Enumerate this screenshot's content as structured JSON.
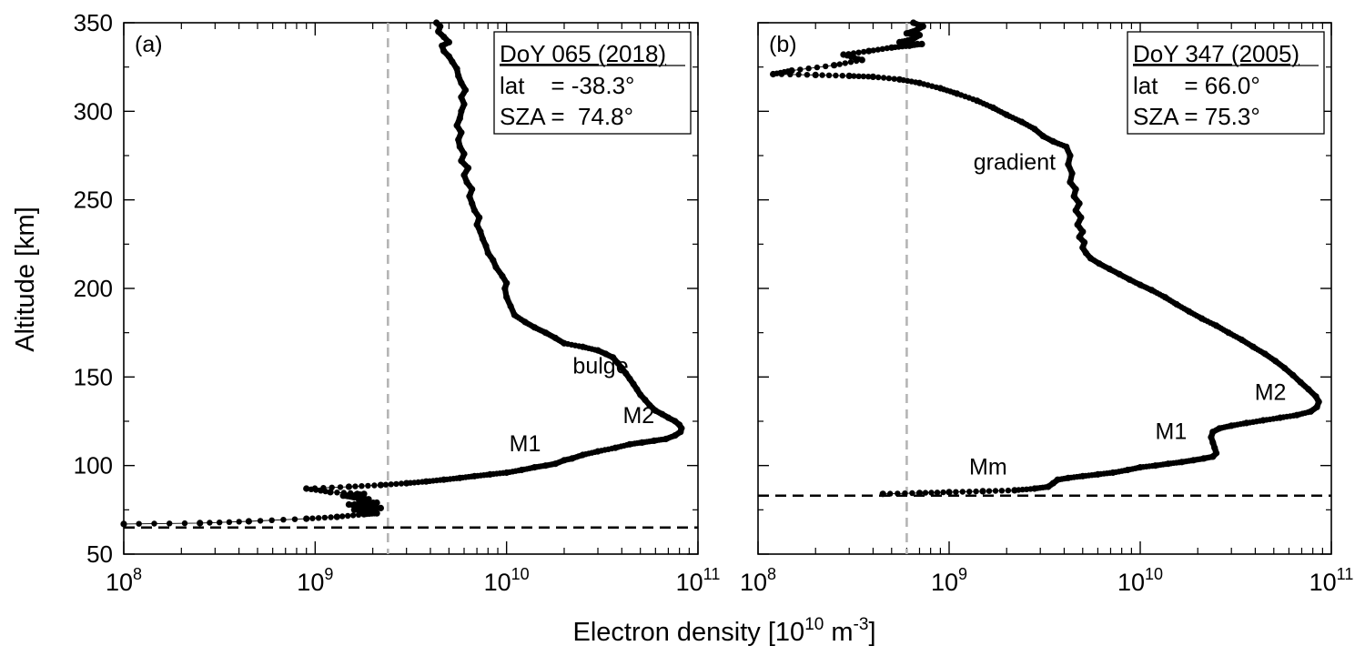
{
  "figure": {
    "xlabel_main": "Electron density [10",
    "xlabel_exp": "10",
    "xlabel_unit": " m",
    "xlabel_unit_exp": "-3",
    "xlabel_close": "]",
    "ylabel": "Altitude [km]"
  },
  "chart_data": [
    {
      "type": "scatter",
      "panel_label": "(a)",
      "xscale": "log",
      "xlim": [
        100000000.0,
        100000000000.0
      ],
      "ylim": [
        50,
        350
      ],
      "y_ticks": [
        50,
        100,
        150,
        200,
        250,
        300,
        350
      ],
      "x_tick_labels": [
        {
          "base": "10",
          "exp": "8"
        },
        {
          "base": "10",
          "exp": "9"
        },
        {
          "base": "10",
          "exp": "10"
        },
        {
          "base": "10",
          "exp": "11"
        }
      ],
      "info_box": {
        "title": "DoY 065 (2018)",
        "line1": "lat    = -38.3°",
        "line2": "SZA =  74.8°",
        "placement": "top-right"
      },
      "annotations": [
        {
          "text": "bulge",
          "x": 31000000000.0,
          "y": 152
        },
        {
          "text": "M2",
          "x": 49000000000.0,
          "y": 124
        },
        {
          "text": "M1",
          "x": 12500000000.0,
          "y": 108
        }
      ],
      "vline_dashed_gray": 2400000000.0,
      "hline_dashed_black": 65,
      "series": [
        {
          "profile": [
            [
              100000000.0,
              67
            ],
            [
              250000000.0,
              67.5
            ],
            [
              450000000.0,
              68.5
            ],
            [
              900000000.0,
              70
            ],
            [
              1300000000.0,
              71
            ],
            [
              1800000000.0,
              72.5
            ],
            [
              2100000000.0,
              73
            ],
            [
              2000000000.0,
              74
            ],
            [
              1600000000.0,
              75
            ],
            [
              2200000000.0,
              76
            ],
            [
              1800000000.0,
              77
            ],
            [
              1500000000.0,
              78
            ],
            [
              2100000000.0,
              79
            ],
            [
              1700000000.0,
              80
            ],
            [
              1900000000.0,
              81
            ],
            [
              1600000000.0,
              82
            ],
            [
              1400000000.0,
              83
            ],
            [
              1800000000.0,
              84
            ],
            [
              1200000000.0,
              85
            ],
            [
              900000000.0,
              87
            ],
            [
              1500000000.0,
              88
            ],
            [
              2200000000.0,
              89
            ],
            [
              3000000000.0,
              90
            ],
            [
              3800000000.0,
              91
            ],
            [
              4700000000.0,
              92
            ],
            [
              5700000000.0,
              93
            ],
            [
              6800000000.0,
              94
            ],
            [
              8200000000.0,
              95
            ],
            [
              10000000000.0,
              96
            ],
            [
              12000000000.0,
              97.5
            ],
            [
              14000000000.0,
              99
            ],
            [
              16000000000.0,
              100
            ],
            [
              18000000000.0,
              101
            ],
            [
              20000000000.0,
              103
            ],
            [
              22000000000.0,
              104
            ],
            [
              25000000000.0,
              106
            ],
            [
              30000000000.0,
              108
            ],
            [
              37000000000.0,
              110
            ],
            [
              44000000000.0,
              112
            ],
            [
              51000000000.0,
              113
            ],
            [
              59000000000.0,
              114
            ],
            [
              68000000000.0,
              115
            ],
            [
              76000000000.0,
              117
            ],
            [
              81000000000.0,
              119
            ],
            [
              82000000000.0,
              121
            ],
            [
              80000000000.0,
              123
            ],
            [
              76000000000.0,
              125
            ],
            [
              70000000000.0,
              127
            ],
            [
              65000000000.0,
              129
            ],
            [
              60000000000.0,
              131
            ],
            [
              56000000000.0,
              134
            ],
            [
              53000000000.0,
              137
            ],
            [
              50000000000.0,
              140
            ],
            [
              48000000000.0,
              143
            ],
            [
              46000000000.0,
              146
            ],
            [
              44000000000.0,
              149
            ],
            [
              42000000000.0,
              152
            ],
            [
              40000000000.0,
              155
            ],
            [
              38000000000.0,
              158
            ],
            [
              36000000000.0,
              161
            ],
            [
              33000000000.0,
              163
            ],
            [
              30000000000.0,
              165
            ],
            [
              25000000000.0,
              167
            ],
            [
              20000000000.0,
              169
            ],
            [
              18000000000.0,
              172
            ],
            [
              16000000000.0,
              175
            ],
            [
              14000000000.0,
              178
            ],
            [
              12500000000.0,
              181
            ],
            [
              11000000000.0,
              185
            ],
            [
              10500000000.0,
              190
            ],
            [
              10000000000.0,
              195
            ],
            [
              9800000000.0,
              200
            ],
            [
              10000000000.0,
              203
            ],
            [
              9500000000.0,
              207
            ],
            [
              8800000000.0,
              212
            ],
            [
              8500000000.0,
              216
            ],
            [
              8000000000.0,
              220
            ],
            [
              7800000000.0,
              224
            ],
            [
              7500000000.0,
              228
            ],
            [
              7300000000.0,
              232
            ],
            [
              7000000000.0,
              236
            ],
            [
              7200000000.0,
              240
            ],
            [
              6800000000.0,
              244
            ],
            [
              6600000000.0,
              248
            ],
            [
              6400000000.0,
              252
            ],
            [
              6600000000.0,
              256
            ],
            [
              6200000000.0,
              260
            ],
            [
              6000000000.0,
              264
            ],
            [
              6300000000.0,
              268
            ],
            [
              5800000000.0,
              272
            ],
            [
              6000000000.0,
              276
            ],
            [
              5700000000.0,
              280
            ],
            [
              5600000000.0,
              284
            ],
            [
              5800000000.0,
              288
            ],
            [
              5500000000.0,
              292
            ],
            [
              5700000000.0,
              296
            ],
            [
              5800000000.0,
              300
            ],
            [
              6000000000.0,
              304
            ],
            [
              5800000000.0,
              308
            ],
            [
              6100000000.0,
              312
            ],
            [
              5800000000.0,
              316
            ],
            [
              5600000000.0,
              320
            ],
            [
              5500000000.0,
              324
            ],
            [
              5200000000.0,
              328
            ],
            [
              5000000000.0,
              331
            ],
            [
              4700000000.0,
              334
            ],
            [
              4600000000.0,
              337
            ],
            [
              5000000000.0,
              339
            ],
            [
              4700000000.0,
              342
            ],
            [
              4400000000.0,
              345
            ],
            [
              4500000000.0,
              348
            ],
            [
              4300000000.0,
              350
            ]
          ]
        }
      ]
    },
    {
      "type": "scatter",
      "panel_label": "(b)",
      "xscale": "log",
      "xlim": [
        100000000.0,
        100000000000.0
      ],
      "ylim": [
        50,
        350
      ],
      "y_ticks": [
        50,
        100,
        150,
        200,
        250,
        300,
        350
      ],
      "x_tick_labels": [
        {
          "base": "10",
          "exp": "8"
        },
        {
          "base": "10",
          "exp": "9"
        },
        {
          "base": "10",
          "exp": "10"
        },
        {
          "base": "10",
          "exp": "11"
        }
      ],
      "info_box": {
        "title": "DoY 347 (2005)",
        "line1": "lat    = 66.0°",
        "line2": "SZA = 75.3°",
        "placement": "top-right"
      },
      "annotations": [
        {
          "text": "gradient",
          "x": 2200000000.0,
          "y": 267
        },
        {
          "text": "M2",
          "x": 48000000000.0,
          "y": 137
        },
        {
          "text": "M1",
          "x": 14500000000.0,
          "y": 115
        },
        {
          "text": "Mm",
          "x": 1600000000.0,
          "y": 95
        }
      ],
      "vline_dashed_gray": 600000000.0,
      "hline_dashed_black": 83,
      "series": [
        {
          "profile": [
            [
              450000000.0,
              84
            ],
            [
              700000000.0,
              84.5
            ],
            [
              1000000000.0,
              85
            ],
            [
              1500000000.0,
              85.5
            ],
            [
              2200000000.0,
              86
            ],
            [
              2800000000.0,
              87
            ],
            [
              3300000000.0,
              88
            ],
            [
              3500000000.0,
              90
            ],
            [
              3700000000.0,
              92
            ],
            [
              4200000000.0,
              93
            ],
            [
              5000000000.0,
              94
            ],
            [
              6000000000.0,
              95
            ],
            [
              7200000000.0,
              96
            ],
            [
              8600000000.0,
              97.5
            ],
            [
              10000000000.0,
              99
            ],
            [
              12000000000.0,
              100
            ],
            [
              14000000000.0,
              101
            ],
            [
              16500000000.0,
              102
            ],
            [
              19000000000.0,
              103
            ],
            [
              21500000000.0,
              104
            ],
            [
              24000000000.0,
              105
            ],
            [
              25000000000.0,
              107
            ],
            [
              24500000000.0,
              110
            ],
            [
              24000000000.0,
              113
            ],
            [
              23500000000.0,
              116
            ],
            [
              24000000000.0,
              119
            ],
            [
              26000000000.0,
              121
            ],
            [
              30000000000.0,
              122.5
            ],
            [
              36000000000.0,
              124
            ],
            [
              44000000000.0,
              125.5
            ],
            [
              54000000000.0,
              127
            ],
            [
              66000000000.0,
              128.5
            ],
            [
              78000000000.0,
              130.5
            ],
            [
              84000000000.0,
              133
            ],
            [
              86000000000.0,
              136
            ],
            [
              83000000000.0,
              139
            ],
            [
              76000000000.0,
              143
            ],
            [
              69000000000.0,
              147
            ],
            [
              63000000000.0,
              151
            ],
            [
              57000000000.0,
              155
            ],
            [
              51000000000.0,
              159
            ],
            [
              45000000000.0,
              163
            ],
            [
              39000000000.0,
              167
            ],
            [
              34000000000.0,
              171
            ],
            [
              29000000000.0,
              175
            ],
            [
              25000000000.0,
              179
            ],
            [
              21000000000.0,
              183
            ],
            [
              18000000000.0,
              187
            ],
            [
              15500000000.0,
              191
            ],
            [
              13500000000.0,
              195
            ],
            [
              11500000000.0,
              199
            ],
            [
              10000000000.0,
              202
            ],
            [
              8800000000.0,
              205
            ],
            [
              7800000000.0,
              208
            ],
            [
              6900000000.0,
              211
            ],
            [
              6100000000.0,
              214
            ],
            [
              5500000000.0,
              217
            ],
            [
              5200000000.0,
              220
            ],
            [
              5000000000.0,
              223
            ],
            [
              5100000000.0,
              226
            ],
            [
              4800000000.0,
              229
            ],
            [
              5000000000.0,
              232
            ],
            [
              4700000000.0,
              236
            ],
            [
              4900000000.0,
              240
            ],
            [
              4600000000.0,
              244
            ],
            [
              4800000000.0,
              248
            ],
            [
              4500000000.0,
              252
            ],
            [
              4600000000.0,
              256
            ],
            [
              4300000000.0,
              260
            ],
            [
              4400000000.0,
              265
            ],
            [
              4200000000.0,
              270
            ],
            [
              4300000000.0,
              275
            ],
            [
              4100000000.0,
              280
            ],
            [
              3500000000.0,
              283
            ],
            [
              3100000000.0,
              286
            ],
            [
              2800000000.0,
              290
            ],
            [
              2400000000.0,
              294
            ],
            [
              2000000000.0,
              298
            ],
            [
              1700000000.0,
              302
            ],
            [
              1400000000.0,
              306
            ],
            [
              1100000000.0,
              310
            ],
            [
              900000000.0,
              313
            ],
            [
              700000000.0,
              316
            ],
            [
              550000000.0,
              318
            ],
            [
              400000000.0,
              319.5
            ],
            [
              300000000.0,
              320
            ],
            [
              200000000.0,
              320.5
            ],
            [
              120000000.0,
              321
            ],
            [
              150000000.0,
              323
            ],
            [
              250000000.0,
              326
            ],
            [
              350000000.0,
              329
            ],
            [
              280000000.0,
              332
            ],
            [
              380000000.0,
              334
            ],
            [
              500000000.0,
              336
            ],
            [
              620000000.0,
              337
            ],
            [
              720000000.0,
              338
            ],
            [
              550000000.0,
              339
            ],
            [
              650000000.0,
              341
            ],
            [
              700000000.0,
              343
            ],
            [
              600000000.0,
              344
            ],
            [
              680000000.0,
              346
            ],
            [
              730000000.0,
              348
            ],
            [
              650000000.0,
              350
            ]
          ]
        }
      ]
    }
  ]
}
